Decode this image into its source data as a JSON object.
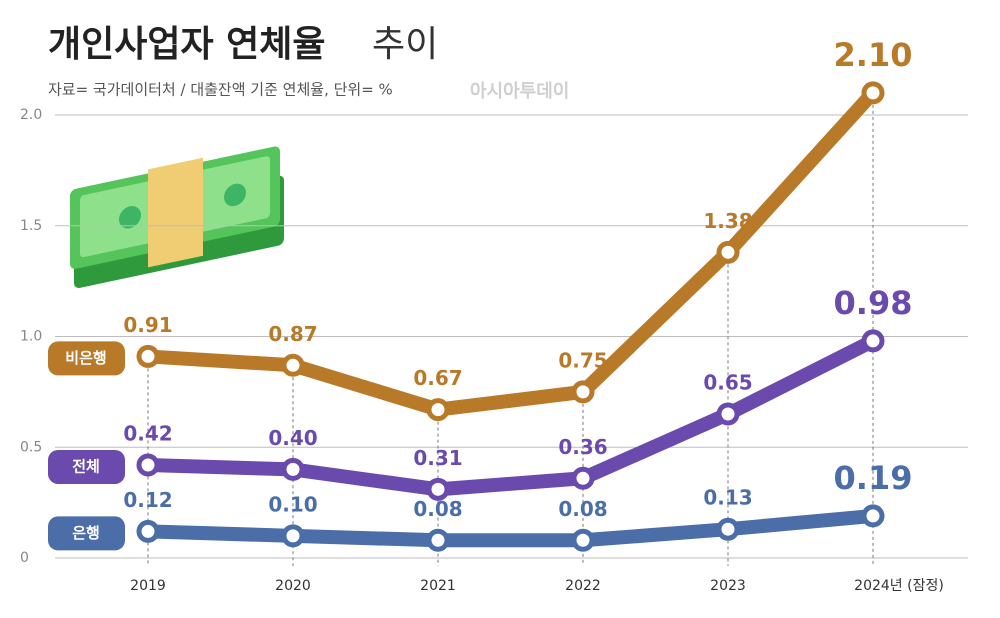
{
  "chart_data": {
    "type": "line",
    "title": "개인사업자 연체율",
    "title_light": "추이",
    "subtitle": "자료= 국가데이터처 / 대출잔액 기준 연체율, 단위= %",
    "watermark": "아시아투데이",
    "categories": [
      "2019",
      "2020",
      "2021",
      "2022",
      "2023",
      "2024년 (잠정)"
    ],
    "series": [
      {
        "name": "비은행",
        "color": "#b87a28",
        "values": [
          0.91,
          0.87,
          0.67,
          0.75,
          1.38,
          2.1
        ],
        "value_labels": [
          "0.91",
          "0.87",
          "0.67",
          "0.75",
          "1.38",
          "2.10"
        ]
      },
      {
        "name": "전체",
        "color": "#6b4aad",
        "values": [
          0.42,
          0.4,
          0.31,
          0.36,
          0.65,
          0.98
        ],
        "value_labels": [
          "0.42",
          "0.40",
          "0.31",
          "0.36",
          "0.65",
          "0.98"
        ]
      },
      {
        "name": "은행",
        "color": "#4b6ea8",
        "values": [
          0.12,
          0.1,
          0.08,
          0.08,
          0.13,
          0.19
        ],
        "value_labels": [
          "0.12",
          "0.10",
          "0.08",
          "0.08",
          "0.13",
          "0.19"
        ]
      }
    ],
    "ylim": [
      0,
      2.2
    ],
    "yticks": [
      0,
      0.5,
      {
        "value": 1,
        "label": "1.0"
      },
      1.5,
      {
        "value": 2,
        "label": "2.0"
      }
    ],
    "grid": true
  }
}
